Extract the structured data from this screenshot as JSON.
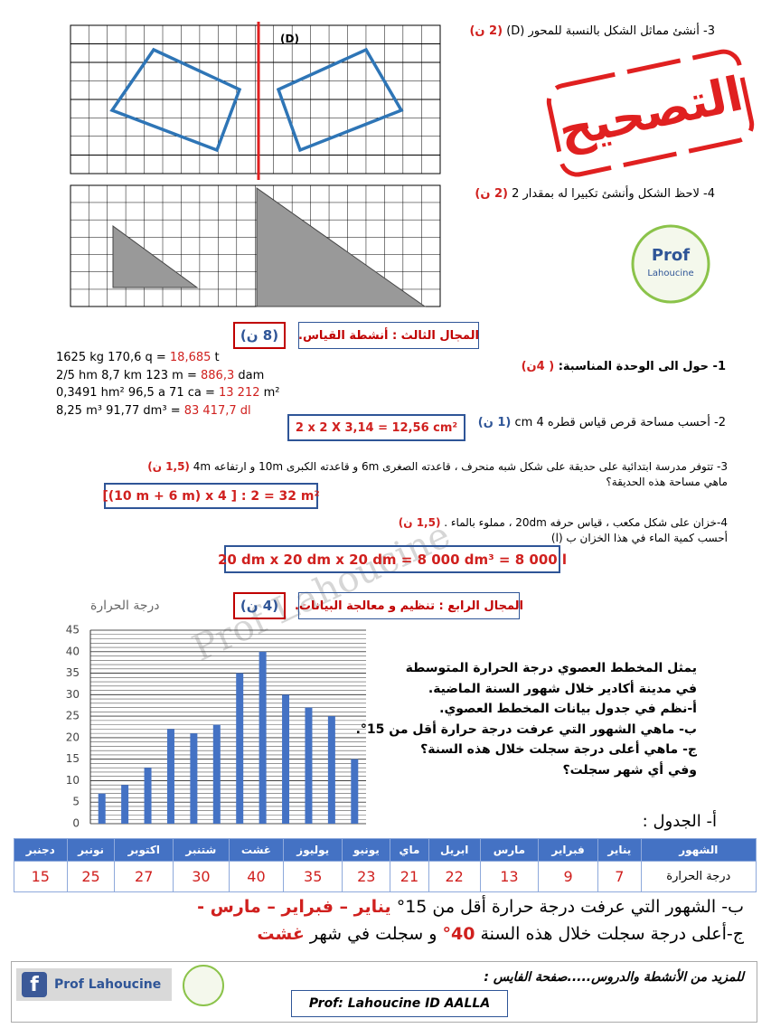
{
  "exercise3": {
    "text": "3- أنشئ مماثل الشكل بالنسبة للمحور (D)",
    "points": "(2 ن)",
    "axis_label": "(D)"
  },
  "stamp": "التصحيح",
  "exercise4": {
    "text": "4- لاحظ الشكل وأنشئ تكبيرا له بمقدار 2",
    "points": "(2 ن)"
  },
  "logo": {
    "line1": "Prof",
    "line2": "Lahoucine"
  },
  "section3": {
    "title": "المجال الثالث : أنشطة القياس.",
    "points": "(8 ن)"
  },
  "q1": {
    "text": "1- حول الى الوحدة المناسبة:",
    "points": "( 4ن)",
    "lines": [
      {
        "question": "1625 kg   170,6 q  =",
        "answer": "18,685",
        "unit": "t"
      },
      {
        "question": "2/5 hm   8,7 km 123 m   =",
        "answer": "886,3",
        "unit": "dam"
      },
      {
        "question": "0,3491 hm²    96,5 a 71 ca  =",
        "answer": "13 212",
        "unit": "m²"
      },
      {
        "question": "8,25 m³ 91,77 dm³ =",
        "answer": "83 417,7 dl"
      }
    ]
  },
  "q2": {
    "text": "2- أحسب مساحة قرص قياس قطره 4 cm",
    "points": "(1 ن)",
    "answer": "2 x 2 X 3,14 =     12,56 cm²"
  },
  "q3": {
    "lines": [
      "3- تتوفر مدرسة ابتدائية على حديقة على شكل شبه منحرف ، قاعدته الصغرى 6m و قاعدته الكبرى 10m و ارتفاعه 4m",
      "ماهي مساحة هذه الحديقة؟"
    ],
    "points": "(1,5 ن)",
    "answer": "[(10 m + 6 m) x 4 ] : 2 = 32 m²"
  },
  "q4": {
    "lines": [
      "4-خزان على شكل مكعب ، قياس حرفه 20dm ، مملوء بالماء .",
      "أحسب كمية الماء في هذا الخزان ب (l)"
    ],
    "points": "(1,5 ن)",
    "answer": "20 dm x 20 dm x 20 dm  = 8 000 dm³ = 8 000 l"
  },
  "section4": {
    "title": "المجال الرابع : تنظيم و معالجة البيانات.",
    "points": "(4 ن)"
  },
  "chart_data": {
    "type": "bar",
    "ylabel": "درجة الحرارة",
    "categories": [
      null,
      null,
      null,
      null,
      null,
      null,
      null,
      null,
      null,
      null,
      null,
      null
    ],
    "values": [
      7,
      9,
      13,
      22,
      21,
      23,
      35,
      40,
      30,
      27,
      25,
      15
    ],
    "color": "#4472c4",
    "ylim": [
      0,
      45
    ],
    "yticks": [
      0,
      5,
      10,
      15,
      20,
      25,
      30,
      35,
      40,
      45
    ],
    "grid": true
  },
  "description": [
    "يمثل المخطط العصوي درجة الحرارة المتوسطة",
    "في مدينة أكادير خلال شهور السنة الماضية.",
    "أ-نظم في جدول بيانات المخطط العصوي.",
    "ب- ماهي الشهور التي عرفت درجة حرارة أقل من 15°.",
    "ج- ماهي أعلى درجة سجلت خلال هذه السنة؟",
    "وفي أي شهر سجلت؟"
  ],
  "table": {
    "title": "أ- الجدول :",
    "header": [
      "الشهور",
      "يناير",
      "فبراير",
      "مارس",
      "ابريل",
      "ماي",
      "يونيو",
      "يوليوز",
      "غشت",
      "شتنبر",
      "اكتوبر",
      "نونبر",
      "دجنبر"
    ],
    "rows": [
      [
        "درجة الحرارة",
        7,
        9,
        13,
        22,
        21,
        23,
        35,
        40,
        30,
        27,
        25,
        15
      ]
    ]
  },
  "answer_b": {
    "text": "ب- الشهور التي عرفت درجة حرارة أقل من 15°",
    "answer": "يناير – فبراير – مارس -"
  },
  "answer_c": {
    "text": "ج-أعلى درجة سجلت خلال هذه السنة",
    "value": "40°",
    "middle": "و سجلت في شهر",
    "month": "غشت"
  },
  "footer": {
    "facebook": "Prof Lahoucine",
    "text": "للمزيد من الأنشطة والدروس.....صفحة الفايس :",
    "author": "Prof:  Lahoucine ID AALLA"
  },
  "watermark": "Prof Lahoucine"
}
